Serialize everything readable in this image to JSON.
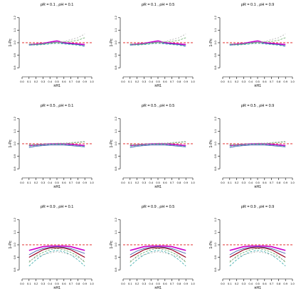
{
  "shared": {
    "ylabel": "1-Pc",
    "xlabel": "πH1",
    "x_ticks": [
      "0.0",
      "0.1",
      "0.2",
      "0.3",
      "0.4",
      "0.5",
      "0.6",
      "0.7",
      "0.8",
      "0.9",
      "1.0"
    ],
    "y_ticks": [
      "0.8",
      "0.9",
      "1.0",
      "1.1",
      "1.2"
    ],
    "reference_line": 1.0,
    "colors": {
      "reference": "#e03030",
      "magenta": "#cc00cc",
      "darkred": "#990022",
      "blue": "#3355aa",
      "green": "#66aa66",
      "teal": "#33aaaa",
      "gray": "#aaaaaa"
    }
  },
  "chart_data": [
    {
      "type": "line",
      "title": "ρR = 0.1 , ρH = 0.1",
      "xlim": [
        0,
        1
      ],
      "ylim": [
        0.75,
        1.25
      ],
      "x": [
        0.1,
        0.2,
        0.3,
        0.4,
        0.5,
        0.6,
        0.7,
        0.8,
        0.9
      ],
      "series": [
        {
          "color": "magenta",
          "values": [
            0.985,
            0.99,
            0.995,
            1.005,
            1.015,
            1.0,
            0.995,
            0.99,
            0.985
          ]
        },
        {
          "color": "blue",
          "values": [
            0.98,
            0.985,
            0.99,
            1.0,
            1.005,
            0.995,
            0.99,
            0.985,
            0.975
          ]
        },
        {
          "color": "green",
          "values": [
            0.99,
            0.985,
            0.99,
            0.995,
            1.0,
            1.005,
            1.01,
            1.02,
            1.04
          ]
        },
        {
          "color": "gray",
          "values": [
            0.99,
            0.99,
            0.995,
            1.0,
            1.005,
            1.01,
            1.025,
            1.04,
            1.07
          ]
        },
        {
          "color": "teal",
          "values": [
            0.985,
            0.98,
            0.985,
            0.99,
            0.995,
            0.99,
            0.985,
            0.98,
            0.97
          ]
        }
      ]
    },
    {
      "type": "line",
      "title": "ρR = 0.1 , ρH = 0.5",
      "xlim": [
        0,
        1
      ],
      "ylim": [
        0.75,
        1.25
      ],
      "x": [
        0.1,
        0.2,
        0.3,
        0.4,
        0.5,
        0.6,
        0.7,
        0.8,
        0.9
      ],
      "series": [
        {
          "color": "magenta",
          "values": [
            0.985,
            0.99,
            0.995,
            1.005,
            1.015,
            1.0,
            0.995,
            0.99,
            0.985
          ]
        },
        {
          "color": "blue",
          "values": [
            0.98,
            0.985,
            0.99,
            1.0,
            1.005,
            0.995,
            0.99,
            0.985,
            0.975
          ]
        },
        {
          "color": "green",
          "values": [
            0.99,
            0.985,
            0.99,
            0.995,
            1.0,
            1.005,
            1.01,
            1.02,
            1.04
          ]
        },
        {
          "color": "gray",
          "values": [
            0.99,
            0.99,
            0.995,
            1.0,
            1.005,
            1.01,
            1.025,
            1.04,
            1.07
          ]
        },
        {
          "color": "teal",
          "values": [
            0.985,
            0.98,
            0.985,
            0.99,
            0.995,
            0.99,
            0.985,
            0.98,
            0.97
          ]
        }
      ]
    },
    {
      "type": "line",
      "title": "ρR = 0.1 , ρH = 0.9",
      "xlim": [
        0,
        1
      ],
      "ylim": [
        0.75,
        1.25
      ],
      "x": [
        0.1,
        0.2,
        0.3,
        0.4,
        0.5,
        0.6,
        0.7,
        0.8,
        0.9
      ],
      "series": [
        {
          "color": "magenta",
          "values": [
            0.985,
            0.99,
            0.995,
            1.005,
            1.015,
            1.0,
            0.995,
            0.99,
            0.985
          ]
        },
        {
          "color": "blue",
          "values": [
            0.98,
            0.985,
            0.99,
            1.0,
            1.005,
            0.995,
            0.99,
            0.985,
            0.975
          ]
        },
        {
          "color": "green",
          "values": [
            0.99,
            0.985,
            0.99,
            0.995,
            1.0,
            1.005,
            1.01,
            1.02,
            1.04
          ]
        },
        {
          "color": "gray",
          "values": [
            0.99,
            0.99,
            0.995,
            1.0,
            1.005,
            1.01,
            1.025,
            1.04,
            1.07
          ]
        },
        {
          "color": "teal",
          "values": [
            0.985,
            0.98,
            0.985,
            0.99,
            0.995,
            0.99,
            0.985,
            0.98,
            0.97
          ]
        }
      ]
    },
    {
      "type": "line",
      "title": "ρR = 0.5 , ρH = 0.1",
      "xlim": [
        0,
        1
      ],
      "ylim": [
        0.75,
        1.25
      ],
      "x": [
        0.1,
        0.2,
        0.3,
        0.4,
        0.5,
        0.6,
        0.7,
        0.8,
        0.9
      ],
      "series": [
        {
          "color": "magenta",
          "values": [
            0.985,
            0.99,
            0.995,
            1.0,
            1.0,
            1.0,
            0.995,
            0.99,
            0.985
          ]
        },
        {
          "color": "blue",
          "values": [
            0.97,
            0.98,
            0.985,
            0.99,
            0.99,
            0.99,
            0.985,
            0.98,
            0.975
          ]
        },
        {
          "color": "green",
          "values": [
            0.99,
            0.99,
            0.995,
            1.0,
            1.0,
            1.0,
            1.005,
            1.01,
            1.015
          ]
        },
        {
          "color": "gray",
          "values": [
            0.995,
            0.995,
            1.0,
            1.0,
            1.005,
            1.005,
            1.01,
            1.015,
            1.02
          ]
        },
        {
          "color": "teal",
          "values": [
            0.98,
            0.985,
            0.99,
            0.995,
            0.995,
            0.995,
            0.99,
            0.985,
            0.98
          ]
        }
      ]
    },
    {
      "type": "line",
      "title": "ρR = 0.5 , ρH = 0.5",
      "xlim": [
        0,
        1
      ],
      "ylim": [
        0.75,
        1.25
      ],
      "x": [
        0.1,
        0.2,
        0.3,
        0.4,
        0.5,
        0.6,
        0.7,
        0.8,
        0.9
      ],
      "series": [
        {
          "color": "magenta",
          "values": [
            0.985,
            0.99,
            0.995,
            1.0,
            1.0,
            1.0,
            0.995,
            0.99,
            0.985
          ]
        },
        {
          "color": "blue",
          "values": [
            0.97,
            0.98,
            0.985,
            0.99,
            0.99,
            0.99,
            0.985,
            0.98,
            0.975
          ]
        },
        {
          "color": "green",
          "values": [
            0.99,
            0.99,
            0.995,
            1.0,
            1.0,
            1.0,
            1.005,
            1.01,
            1.015
          ]
        },
        {
          "color": "gray",
          "values": [
            0.995,
            0.995,
            1.0,
            1.0,
            1.005,
            1.005,
            1.01,
            1.015,
            1.02
          ]
        },
        {
          "color": "teal",
          "values": [
            0.98,
            0.985,
            0.99,
            0.995,
            0.995,
            0.995,
            0.99,
            0.985,
            0.98
          ]
        }
      ]
    },
    {
      "type": "line",
      "title": "ρR = 0.5 , ρH = 0.9",
      "xlim": [
        0,
        1
      ],
      "ylim": [
        0.75,
        1.25
      ],
      "x": [
        0.1,
        0.2,
        0.3,
        0.4,
        0.5,
        0.6,
        0.7,
        0.8,
        0.9
      ],
      "series": [
        {
          "color": "magenta",
          "values": [
            0.985,
            0.99,
            0.995,
            1.0,
            1.0,
            1.0,
            0.995,
            0.99,
            0.985
          ]
        },
        {
          "color": "blue",
          "values": [
            0.97,
            0.98,
            0.985,
            0.99,
            0.99,
            0.99,
            0.985,
            0.98,
            0.975
          ]
        },
        {
          "color": "green",
          "values": [
            0.99,
            0.99,
            0.995,
            1.0,
            1.0,
            1.0,
            1.005,
            1.01,
            1.015
          ]
        },
        {
          "color": "gray",
          "values": [
            0.995,
            0.995,
            1.0,
            1.0,
            1.005,
            1.005,
            1.01,
            1.015,
            1.02
          ]
        },
        {
          "color": "teal",
          "values": [
            0.98,
            0.985,
            0.99,
            0.995,
            0.995,
            0.995,
            0.99,
            0.985,
            0.98
          ]
        }
      ]
    },
    {
      "type": "line",
      "title": "ρR = 0.9 , ρH = 0.1",
      "xlim": [
        0,
        1
      ],
      "ylim": [
        0.75,
        1.25
      ],
      "x": [
        0.1,
        0.2,
        0.3,
        0.4,
        0.5,
        0.6,
        0.7,
        0.8,
        0.9
      ],
      "series": [
        {
          "color": "magenta",
          "values": [
            0.955,
            0.97,
            0.985,
            0.99,
            0.99,
            0.99,
            0.985,
            0.97,
            0.955
          ]
        },
        {
          "color": "darkred",
          "values": [
            0.9,
            0.93,
            0.96,
            0.975,
            0.975,
            0.975,
            0.96,
            0.93,
            0.9
          ]
        },
        {
          "color": "blue",
          "values": [
            0.92,
            0.95,
            0.97,
            0.98,
            0.985,
            0.98,
            0.97,
            0.95,
            0.93
          ]
        },
        {
          "color": "green",
          "values": [
            0.86,
            0.91,
            0.94,
            0.96,
            0.97,
            0.96,
            0.94,
            0.91,
            0.86
          ]
        },
        {
          "color": "teal",
          "values": [
            0.83,
            0.88,
            0.92,
            0.945,
            0.955,
            0.945,
            0.92,
            0.88,
            0.83
          ]
        },
        {
          "color": "gray",
          "values": [
            0.87,
            0.9,
            0.92,
            0.935,
            0.945,
            0.935,
            0.92,
            0.9,
            0.87
          ]
        }
      ]
    },
    {
      "type": "line",
      "title": "ρR = 0.9 , ρH = 0.5",
      "xlim": [
        0,
        1
      ],
      "ylim": [
        0.75,
        1.25
      ],
      "x": [
        0.1,
        0.2,
        0.3,
        0.4,
        0.5,
        0.6,
        0.7,
        0.8,
        0.9
      ],
      "series": [
        {
          "color": "magenta",
          "values": [
            0.955,
            0.97,
            0.985,
            0.99,
            0.99,
            0.99,
            0.985,
            0.97,
            0.955
          ]
        },
        {
          "color": "darkred",
          "values": [
            0.9,
            0.93,
            0.96,
            0.975,
            0.975,
            0.975,
            0.96,
            0.93,
            0.9
          ]
        },
        {
          "color": "blue",
          "values": [
            0.92,
            0.95,
            0.97,
            0.98,
            0.985,
            0.98,
            0.97,
            0.95,
            0.93
          ]
        },
        {
          "color": "green",
          "values": [
            0.86,
            0.91,
            0.94,
            0.96,
            0.97,
            0.96,
            0.94,
            0.91,
            0.86
          ]
        },
        {
          "color": "teal",
          "values": [
            0.83,
            0.88,
            0.92,
            0.945,
            0.955,
            0.945,
            0.92,
            0.88,
            0.83
          ]
        },
        {
          "color": "gray",
          "values": [
            0.87,
            0.9,
            0.92,
            0.935,
            0.945,
            0.935,
            0.92,
            0.9,
            0.87
          ]
        }
      ]
    },
    {
      "type": "line",
      "title": "ρR = 0.9 , ρH = 0.9",
      "xlim": [
        0,
        1
      ],
      "ylim": [
        0.75,
        1.25
      ],
      "x": [
        0.1,
        0.2,
        0.3,
        0.4,
        0.5,
        0.6,
        0.7,
        0.8,
        0.9
      ],
      "series": [
        {
          "color": "magenta",
          "values": [
            0.955,
            0.97,
            0.985,
            0.99,
            0.99,
            0.99,
            0.985,
            0.97,
            0.955
          ]
        },
        {
          "color": "darkred",
          "values": [
            0.9,
            0.93,
            0.96,
            0.975,
            0.975,
            0.975,
            0.96,
            0.93,
            0.9
          ]
        },
        {
          "color": "blue",
          "values": [
            0.92,
            0.95,
            0.97,
            0.98,
            0.985,
            0.98,
            0.97,
            0.95,
            0.93
          ]
        },
        {
          "color": "green",
          "values": [
            0.86,
            0.91,
            0.94,
            0.96,
            0.97,
            0.96,
            0.94,
            0.91,
            0.86
          ]
        },
        {
          "color": "teal",
          "values": [
            0.83,
            0.88,
            0.92,
            0.945,
            0.955,
            0.945,
            0.92,
            0.88,
            0.83
          ]
        },
        {
          "color": "gray",
          "values": [
            0.87,
            0.9,
            0.92,
            0.935,
            0.945,
            0.935,
            0.92,
            0.9,
            0.87
          ]
        }
      ]
    }
  ]
}
